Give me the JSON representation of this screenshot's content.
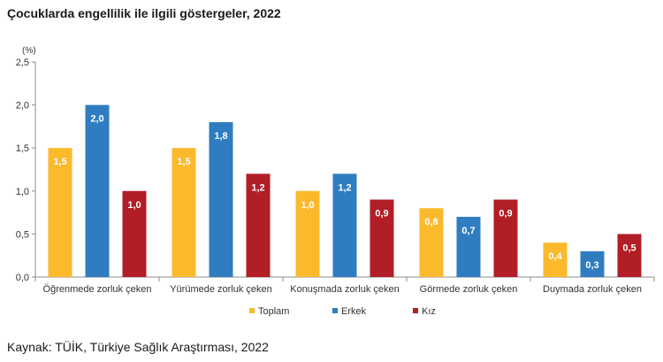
{
  "header": {
    "title": "Çocuklarda engellilik ile ilgili göstergeler, 2022"
  },
  "footer": {
    "source": "Kaynak: TÜİK, Türkiye Sağlık Araştırması, 2022"
  },
  "chart_data": {
    "type": "bar",
    "title": "Çocuklarda engellilik ile ilgili göstergeler, 2022",
    "unit": "(%)",
    "xlabel": "",
    "ylabel": "(%)",
    "ylim": [
      0,
      2.5
    ],
    "yticks": [
      0,
      0.5,
      1.0,
      1.5,
      2.0,
      2.5
    ],
    "ytick_labels": [
      "0,0",
      "0,5",
      "1,0",
      "1,5",
      "2,0",
      "2,5"
    ],
    "grid": false,
    "legend_position": "bottom",
    "categories": [
      "Öğrenmede zorluk çeken",
      "Yürümede zorluk çeken",
      "Konuşmada zorluk çeken",
      "Görmede zorluk çeken",
      "Duymada zorluk çeken"
    ],
    "series": [
      {
        "name": "Toplam",
        "color": "#fbb92c",
        "values": [
          1.5,
          1.5,
          1.0,
          0.8,
          0.4
        ],
        "labels": [
          "1,5",
          "1,5",
          "1,0",
          "0,8",
          "0,4"
        ]
      },
      {
        "name": "Erkek",
        "color": "#2f7dc0",
        "values": [
          2.0,
          1.8,
          1.2,
          0.7,
          0.3
        ],
        "labels": [
          "2,0",
          "1,8",
          "1,2",
          "0,7",
          "0,3"
        ]
      },
      {
        "name": "Kız",
        "color": "#b11e26",
        "values": [
          1.0,
          1.2,
          0.9,
          0.9,
          0.5
        ],
        "labels": [
          "1,0",
          "1,2",
          "0,9",
          "0,9",
          "0,5"
        ]
      }
    ]
  }
}
